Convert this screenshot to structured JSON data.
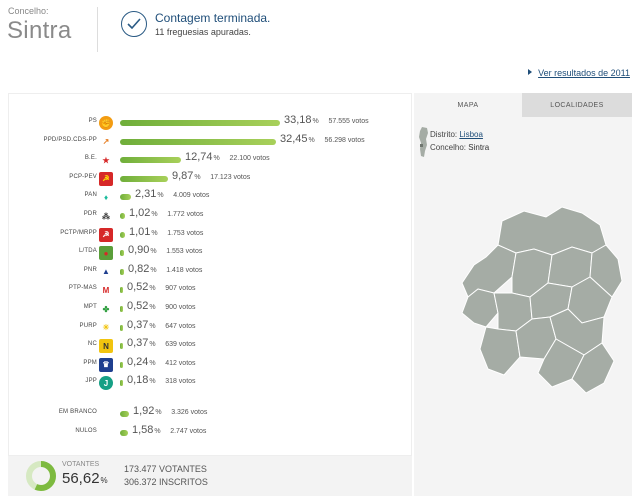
{
  "header": {
    "label": "Concelho:",
    "name": "Sintra",
    "status_title": "Contagem terminada.",
    "status_sub": "11 freguesias apuradas."
  },
  "prev_link": "Ver resultados de 2011",
  "colors": {
    "bar": "#7dba3f",
    "accent": "#1f4e79",
    "map_fill": "#a5aca5"
  },
  "parties": [
    {
      "name": "PS",
      "pct": "33,18",
      "votes": "57.555 votos",
      "share": 33.18,
      "logo_icon": "ps-fist-rose-icon"
    },
    {
      "name": "PPD/PSD.CDS-PP",
      "pct": "32,45",
      "votes": "56.298 votos",
      "share": 32.45,
      "logo_icon": "psd-cds-arrow-icon"
    },
    {
      "name": "B.E.",
      "pct": "12,74",
      "votes": "22.100 votos",
      "share": 12.74,
      "logo_icon": "be-star-icon"
    },
    {
      "name": "PCP-PEV",
      "pct": "9,87",
      "votes": "17.123 votos",
      "share": 9.87,
      "logo_icon": "pcp-pev-sickle-sun-icon"
    },
    {
      "name": "PAN",
      "pct": "2,31",
      "votes": "4.009 votos",
      "share": 2.31,
      "logo_icon": "pan-icon"
    },
    {
      "name": "PDR",
      "pct": "1,02",
      "votes": "1.772 votos",
      "share": 1.02,
      "logo_icon": "pdr-dots-icon"
    },
    {
      "name": "PCTP/MRPP",
      "pct": "1,01",
      "votes": "1.753 votos",
      "share": 1.01,
      "logo_icon": "pctp-mrpp-icon"
    },
    {
      "name": "L/TDA",
      "pct": "0,90",
      "votes": "1.553 votos",
      "share": 0.9,
      "logo_icon": "livre-poppy-icon"
    },
    {
      "name": "PNR",
      "pct": "0,82",
      "votes": "1.418 votos",
      "share": 0.82,
      "logo_icon": "pnr-flame-icon"
    },
    {
      "name": "PTP-MAS",
      "pct": "0,52",
      "votes": "907 votos",
      "share": 0.52,
      "logo_icon": "ptp-mas-icon"
    },
    {
      "name": "MPT",
      "pct": "0,52",
      "votes": "900 votos",
      "share": 0.52,
      "logo_icon": "mpt-clover-icon"
    },
    {
      "name": "PURP",
      "pct": "0,37",
      "votes": "647 votos",
      "share": 0.37,
      "logo_icon": "purp-sun-icon"
    },
    {
      "name": "NC",
      "pct": "0,37",
      "votes": "639 votos",
      "share": 0.37,
      "logo_icon": "nc-icon"
    },
    {
      "name": "PPM",
      "pct": "0,24",
      "votes": "412 votos",
      "share": 0.24,
      "logo_icon": "ppm-crown-icon"
    },
    {
      "name": "JPP",
      "pct": "0,18",
      "votes": "318 votos",
      "share": 0.18,
      "logo_icon": "jpp-icon"
    }
  ],
  "others": [
    {
      "name": "EM BRANCO",
      "pct": "1,92",
      "votes": "3.326 votos",
      "share": 1.92
    },
    {
      "name": "NULOS",
      "pct": "1,58",
      "votes": "2.747 votos",
      "share": 1.58
    }
  ],
  "pct_symbol": "%",
  "turnout": {
    "label": "VOTANTES",
    "pct": "56,62",
    "share": 56.62,
    "votantes": "173.477 VOTANTES",
    "inscritos": "306.372 INSCRITOS"
  },
  "map_panel": {
    "tabs": [
      "MAPA",
      "LOCALIDADES"
    ],
    "distrito_label": "Distrito:",
    "distrito_value": "Lisboa",
    "concelho_label": "Concelho:",
    "concelho_value": "Sintra"
  }
}
